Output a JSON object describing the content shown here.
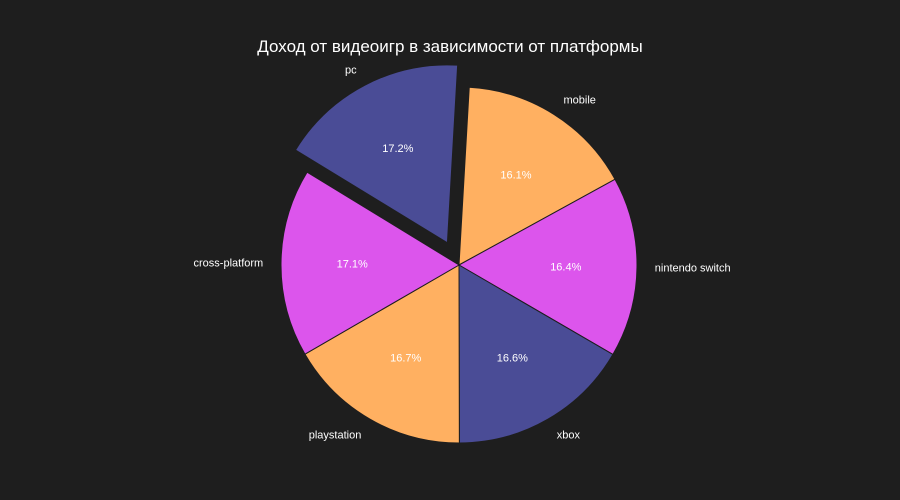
{
  "chart_data": {
    "type": "pie",
    "title": "Доход от видеоигр в зависимости от платформы",
    "start_angle_deg": 86.7,
    "direction": "clockwise",
    "exploded": "pc",
    "slices": [
      {
        "label": "mobile",
        "pct_label": "16.1%",
        "value": 16.1,
        "color": "#ffb061"
      },
      {
        "label": "nintendo switch",
        "pct_label": "16.4%",
        "value": 16.4,
        "color": "#dc55ec"
      },
      {
        "label": "xbox",
        "pct_label": "16.6%",
        "value": 16.6,
        "color": "#4a4c96"
      },
      {
        "label": "playstation",
        "pct_label": "16.7%",
        "value": 16.7,
        "color": "#ffb061"
      },
      {
        "label": "cross-platform",
        "pct_label": "17.1%",
        "value": 17.1,
        "color": "#dc55ec"
      },
      {
        "label": "pc",
        "pct_label": "17.2%",
        "value": 17.2,
        "color": "#4a4c96"
      }
    ]
  },
  "colors": {
    "background": "#1e1e1e",
    "text": "#ffffff"
  }
}
